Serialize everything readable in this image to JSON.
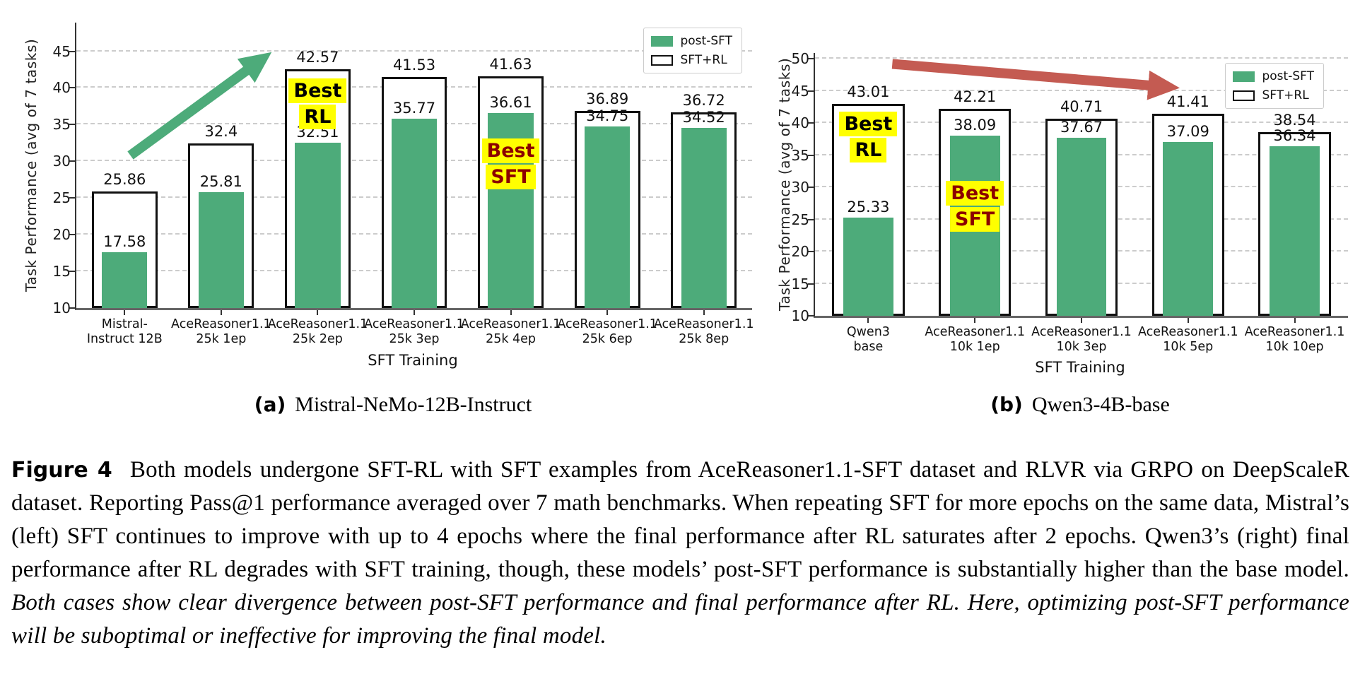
{
  "colors": {
    "bar_green": "#4dab7a",
    "bar_white": "#ffffff",
    "bar_border": "#111111",
    "arrow_green": "#4dab7a",
    "arrow_red": "#c45b52",
    "highlight_yellow": "#ffff00",
    "best_sft_text": "#8b0000",
    "best_rl_text": "#000000",
    "gridline": "#cccccc"
  },
  "chart_data": [
    {
      "id": "mistral",
      "type": "bar",
      "panel_label": "(a)",
      "panel_title": "Mistral-NeMo-12B-Instruct",
      "xlabel": "SFT Training",
      "ylabel": "Task Performance (avg of 7 tasks)",
      "ymin": 10,
      "ymax": 48.9,
      "yticks": [
        10,
        15,
        20,
        25,
        30,
        35,
        40,
        45
      ],
      "grid": "horizontal-dashed",
      "legend_position": "upper-right",
      "categories": [
        [
          "Mistral-",
          "Instruct 12B"
        ],
        [
          "AceReasoner1.1",
          "25k 1ep"
        ],
        [
          "AceReasoner1.1",
          "25k 2ep"
        ],
        [
          "AceReasoner1.1",
          "25k 3ep"
        ],
        [
          "AceReasoner1.1",
          "25k 4ep"
        ],
        [
          "AceReasoner1.1",
          "25k 6ep"
        ],
        [
          "AceReasoner1.1",
          "25k 8ep"
        ]
      ],
      "series": [
        {
          "key": "post_sft",
          "name": "post-SFT",
          "color": "#4dab7a",
          "values": [
            17.58,
            25.81,
            32.51,
            35.77,
            36.61,
            34.75,
            34.52
          ]
        },
        {
          "key": "sft_rl",
          "name": "SFT+RL",
          "color": "#ffffff",
          "values": [
            25.86,
            32.4,
            42.57,
            41.53,
            41.63,
            36.89,
            36.72
          ]
        }
      ],
      "annotations": [
        {
          "bar": 2,
          "lines": [
            "Best",
            "RL"
          ],
          "color": "#000000",
          "center_value": 37.8
        },
        {
          "bar": 4,
          "lines": [
            "Best",
            "SFT"
          ],
          "color": "#8b0000",
          "center_value": 29.6
        }
      ],
      "trend_arrow": {
        "color": "#4dab7a",
        "direction": "up",
        "from_frac": 0.08,
        "from_value": 30.8,
        "to_frac": 0.276,
        "to_value": 44.0
      }
    },
    {
      "id": "qwen3",
      "type": "bar",
      "panel_label": "(b)",
      "panel_title": "Qwen3-4B-base",
      "xlabel": "SFT Training",
      "ylabel": "Task Performance (avg of 7 tasks)",
      "ymin": 10,
      "ymax": 50.9,
      "yticks": [
        10,
        15,
        20,
        25,
        30,
        35,
        40,
        45,
        50
      ],
      "grid": "horizontal-dashed",
      "legend_position": "upper-right",
      "categories": [
        [
          "Qwen3",
          "base"
        ],
        [
          "AceReasoner1.1",
          "10k 1ep"
        ],
        [
          "AceReasoner1.1",
          "10k 3ep"
        ],
        [
          "AceReasoner1.1",
          "10k 5ep"
        ],
        [
          "AceReasoner1.1",
          "10k 10ep"
        ]
      ],
      "series": [
        {
          "key": "post_sft",
          "name": "post-SFT",
          "color": "#4dab7a",
          "values": [
            25.33,
            38.09,
            37.67,
            37.09,
            36.34
          ]
        },
        {
          "key": "sft_rl",
          "name": "SFT+RL",
          "color": "#ffffff",
          "values": [
            43.01,
            42.21,
            40.71,
            41.41,
            38.54
          ]
        }
      ],
      "annotations": [
        {
          "bar": 0,
          "lines": [
            "Best",
            "RL"
          ],
          "color": "#000000",
          "center_value": 37.8
        },
        {
          "bar": 1,
          "lines": [
            "Best",
            "SFT"
          ],
          "color": "#8b0000",
          "center_value": 27.0
        }
      ],
      "trend_arrow": {
        "color": "#c45b52",
        "direction": "down",
        "from_frac": 0.145,
        "from_value": 49.2,
        "to_frac": 0.664,
        "to_value": 45.6
      }
    }
  ],
  "caption": {
    "label": "Figure 4",
    "text": " Both models undergone SFT-RL with SFT examples from AceReasoner1.1-SFT dataset and RLVR via GRPO on DeepScaleR dataset. Reporting Pass@1 performance averaged over 7 math benchmarks. When repeating SFT for more epochs on the same data, Mistral’s (left) SFT continues to improve with up to 4 epochs where the final performance after RL saturates after 2 epochs. Qwen3’s (right) final performance after RL degrades with SFT training, though, these models’ post-SFT performance is substantially higher than the base model. ",
    "italic_text": "Both cases show clear divergence between post-SFT performance and final performance after RL. Here, optimizing post-SFT performance will be suboptimal or ineffective for improving the final model."
  }
}
